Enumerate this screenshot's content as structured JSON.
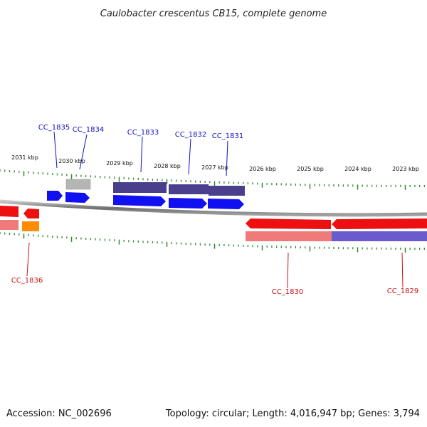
{
  "title": "Caulobacter crescentus CB15, complete genome",
  "footer": {
    "accession": "Accession: NC_002696",
    "summary": "Topology: circular; Length: 4,016,947 bp; Genes: 3,794"
  },
  "colors": {
    "backbone": "#8a8a8a",
    "tick": "#2e8b2e",
    "forward_gene": "#1010f0",
    "forward_gene_alt": "#4a3f8c",
    "pseudo_gene": "#b8b8b8",
    "reverse_gene": "#ee1010",
    "reverse_gene_pale": "#ee7a7a",
    "reverse_gene_orange": "#ff8c00",
    "reverse_gene_mixed": "#6a5acd",
    "label_forward": "#1010c0",
    "label_reverse": "#cc1010"
  },
  "scale": {
    "unit": "kbp",
    "major_ticks": [
      {
        "label": "2031 kbp"
      },
      {
        "label": "2030 kbp"
      },
      {
        "label": "2029 kbp"
      },
      {
        "label": "2028 kbp"
      },
      {
        "label": "2027 kbp"
      },
      {
        "label": "2026 kbp"
      },
      {
        "label": "2025 kbp"
      },
      {
        "label": "2024 kbp"
      },
      {
        "label": "2023 kbp"
      }
    ]
  },
  "genes": [
    {
      "name": "CC_1835",
      "strand": "forward"
    },
    {
      "name": "CC_1834",
      "strand": "forward"
    },
    {
      "name": "CC_1833",
      "strand": "forward"
    },
    {
      "name": "CC_1832",
      "strand": "forward"
    },
    {
      "name": "CC_1831",
      "strand": "forward"
    },
    {
      "name": "CC_1836",
      "strand": "reverse"
    },
    {
      "name": "CC_1830",
      "strand": "reverse"
    },
    {
      "name": "CC_1829",
      "strand": "reverse"
    }
  ]
}
